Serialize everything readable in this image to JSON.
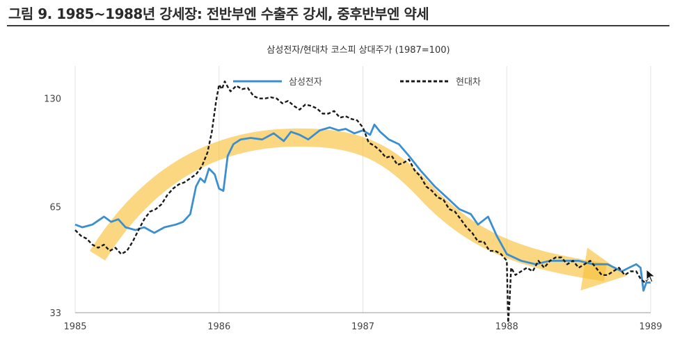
{
  "figure_title": "그림 9. 1985~1988년 강세장: 전반부엔 수출주 강세, 중후반부엔 약세",
  "chart_data": {
    "type": "line",
    "title": "삼성전자/현대차 코스피 상대주가 (1987=100)",
    "xlabel": "",
    "ylabel": "",
    "y_scale": "log",
    "xlim": [
      1985,
      1989
    ],
    "ylim": [
      33,
      160
    ],
    "x_ticks": [
      "1985",
      "1986",
      "1987",
      "1988",
      "1989"
    ],
    "y_ticks": [
      "33",
      "65",
      "130"
    ],
    "grid": {
      "vertical": true,
      "horizontal": false
    },
    "legend_position": "top",
    "series": [
      {
        "name": "삼성전자",
        "color": "#3b8fd0",
        "style": "solid",
        "x": [
          1985.0,
          1985.05,
          1985.12,
          1985.2,
          1985.25,
          1985.3,
          1985.35,
          1985.42,
          1985.48,
          1985.55,
          1985.62,
          1985.7,
          1985.75,
          1985.8,
          1985.84,
          1985.87,
          1985.9,
          1985.93,
          1985.97,
          1986.0,
          1986.03,
          1986.06,
          1986.1,
          1986.15,
          1986.22,
          1986.3,
          1986.38,
          1986.45,
          1986.5,
          1986.56,
          1986.62,
          1986.7,
          1986.77,
          1986.83,
          1986.88,
          1986.94,
          1987.0,
          1987.05,
          1987.08,
          1987.12,
          1987.18,
          1987.25,
          1987.32,
          1987.4,
          1987.5,
          1987.6,
          1987.67,
          1987.75,
          1987.8,
          1987.87,
          1987.93,
          1988.0,
          1988.1,
          1988.2,
          1988.3,
          1988.4,
          1988.5,
          1988.6,
          1988.7,
          1988.8,
          1988.85,
          1988.9,
          1988.93,
          1988.95,
          1988.97,
          1989.0
        ],
        "y": [
          58,
          57,
          58,
          61,
          59,
          60,
          57,
          56,
          57,
          55,
          57,
          58,
          59,
          62,
          74,
          78,
          76,
          83,
          80,
          73,
          72,
          90,
          97,
          100,
          101,
          100,
          104,
          99,
          105,
          103,
          100,
          106,
          108,
          106,
          107,
          104,
          106,
          103,
          110,
          105,
          100,
          97,
          90,
          82,
          74,
          68,
          64,
          62,
          58,
          61,
          54,
          48,
          46,
          45,
          46,
          46,
          46,
          45,
          45,
          43,
          44,
          45,
          44,
          38,
          40,
          40
        ]
      },
      {
        "name": "현대차",
        "color": "#1a1a1a",
        "style": "dashed",
        "x": [
          1985.0,
          1985.04,
          1985.08,
          1985.12,
          1985.16,
          1985.2,
          1985.24,
          1985.28,
          1985.32,
          1985.36,
          1985.4,
          1985.44,
          1985.48,
          1985.52,
          1985.56,
          1985.6,
          1985.64,
          1985.68,
          1985.72,
          1985.76,
          1985.8,
          1985.84,
          1985.88,
          1985.92,
          1985.95,
          1985.98,
          1986.0,
          1986.02,
          1986.04,
          1986.06,
          1986.08,
          1986.12,
          1986.16,
          1986.2,
          1986.24,
          1986.28,
          1986.32,
          1986.36,
          1986.4,
          1986.44,
          1986.48,
          1986.52,
          1986.56,
          1986.6,
          1986.64,
          1986.68,
          1986.72,
          1986.76,
          1986.8,
          1986.84,
          1986.88,
          1986.92,
          1986.96,
          1987.0,
          1987.04,
          1987.08,
          1987.12,
          1987.16,
          1987.2,
          1987.24,
          1987.28,
          1987.32,
          1987.36,
          1987.4,
          1987.44,
          1987.48,
          1987.52,
          1987.56,
          1987.6,
          1987.64,
          1987.68,
          1987.72,
          1987.76,
          1987.8,
          1987.84,
          1987.88,
          1987.92,
          1987.96,
          1988.0,
          1988.01,
          1988.02,
          1988.03,
          1988.06,
          1988.1,
          1988.14,
          1988.18,
          1988.22,
          1988.26,
          1988.3,
          1988.34,
          1988.38,
          1988.42,
          1988.46,
          1988.5,
          1988.54,
          1988.58,
          1988.62,
          1988.66,
          1988.7,
          1988.74,
          1988.78,
          1988.82,
          1988.86,
          1988.9,
          1988.93,
          1988.96,
          1989.0
        ],
        "y": [
          56,
          54,
          53,
          51,
          50,
          51,
          49,
          50,
          48,
          49,
          52,
          56,
          60,
          63,
          64,
          66,
          70,
          73,
          75,
          76,
          78,
          80,
          84,
          92,
          105,
          128,
          142,
          138,
          145,
          140,
          136,
          141,
          138,
          139,
          132,
          130,
          130,
          131,
          130,
          126,
          128,
          124,
          121,
          125,
          124,
          122,
          118,
          118,
          120,
          115,
          116,
          114,
          113,
          108,
          98,
          96,
          93,
          89,
          90,
          85,
          86,
          88,
          82,
          79,
          74,
          72,
          69,
          68,
          64,
          63,
          60,
          57,
          55,
          52,
          52,
          49,
          49,
          48,
          46,
          31,
          36,
          44,
          42,
          43,
          44,
          43,
          46,
          44,
          46,
          47,
          47,
          45,
          46,
          44,
          45,
          46,
          44,
          42,
          42,
          43,
          44,
          42,
          43,
          43,
          41,
          40,
          42
        ]
      }
    ]
  }
}
